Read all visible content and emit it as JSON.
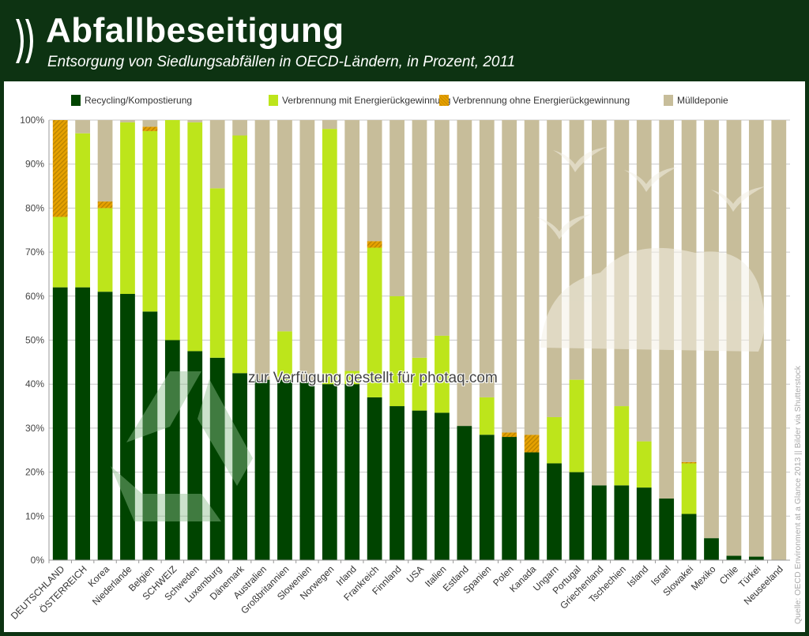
{
  "header": {
    "title": "Abfallbeseitigung",
    "subtitle": "Entsorgung von Siedlungsabfällen in OECD-Ländern, in Prozent, 2011",
    "logo_icon": "oecd-chevrons-icon"
  },
  "source": "Quelle: OECD Environment at a Glance 2013 || Bilder via Shutterstock",
  "watermark": "zur Verfügung gestellt für photaq.com",
  "colors": {
    "background": "#0d3312",
    "recycling": "#004400",
    "energy": "#bde51b",
    "no_energy": "#e6a100",
    "landfill": "#c7bd9a"
  },
  "chart_data": {
    "type": "bar",
    "stacked": true,
    "title": "Abfallbeseitigung",
    "subtitle": "Entsorgung von Siedlungsabfällen in OECD-Ländern, in Prozent, 2011",
    "xlabel": "",
    "ylabel": "",
    "ylim": [
      0,
      100
    ],
    "yticks": [
      "0%",
      "10%",
      "20%",
      "30%",
      "40%",
      "50%",
      "60%",
      "70%",
      "80%",
      "90%",
      "100%"
    ],
    "grid": true,
    "legend_position": "top",
    "categories": [
      "DEUTSCHLAND",
      "ÖSTERREICH",
      "Korea",
      "Niederlande",
      "Belgien",
      "SCHWEIZ",
      "Schweden",
      "Luxemburg",
      "Dänemark",
      "Australien",
      "Großbritannien",
      "Slowenien",
      "Norwegen",
      "Irland",
      "Frankreich",
      "Finnland",
      "USA",
      "Italien",
      "Estland",
      "Spanien",
      "Polen",
      "Kanada",
      "Ungarn",
      "Portugal",
      "Griechenland",
      "Tschechien",
      "Island",
      "Israel",
      "Slowakei",
      "Mexiko",
      "Chile",
      "Türkei",
      "Neuseeland"
    ],
    "series": [
      {
        "name": "Recycling/Kompostierung",
        "key": "recycling",
        "values": [
          62,
          62,
          61,
          60.5,
          56.5,
          50,
          47.5,
          46,
          42.5,
          41,
          41,
          40.5,
          40,
          40,
          37,
          35,
          34,
          33.5,
          30.5,
          28.5,
          28,
          24.5,
          22,
          20,
          17,
          17,
          16.5,
          14,
          10.5,
          5,
          1,
          0.8,
          0
        ]
      },
      {
        "name": "Verbrennung mit Energierückgewinnung",
        "key": "energy",
        "values": [
          16,
          35,
          19,
          39,
          41,
          50,
          52,
          38.5,
          54,
          0,
          11,
          0,
          58,
          3,
          34,
          25,
          12,
          17.5,
          0,
          8.5,
          0,
          0,
          10.5,
          21,
          0,
          18,
          10.5,
          0,
          11.5,
          0,
          0,
          0,
          0
        ]
      },
      {
        "name": "Verbrennung ohne Energierückgewinnung",
        "key": "no_energy",
        "values": [
          22,
          0,
          1.5,
          0,
          1,
          0,
          0,
          0,
          0,
          0,
          0,
          0,
          0,
          0,
          1.5,
          0,
          0,
          0,
          0,
          0,
          1,
          4,
          0,
          0,
          0,
          0,
          0,
          0,
          0.3,
          0,
          0,
          0,
          0
        ]
      },
      {
        "name": "Mülldeponie",
        "key": "landfill",
        "values": [
          0,
          3,
          18.5,
          0.5,
          1.5,
          0,
          0.5,
          15.5,
          3.5,
          59,
          48,
          59.5,
          2,
          57,
          27.5,
          40,
          54,
          49,
          69.5,
          63,
          71,
          71.5,
          67.5,
          59,
          83,
          65,
          73,
          86,
          77.7,
          95,
          99,
          99.2,
          100
        ]
      }
    ]
  }
}
